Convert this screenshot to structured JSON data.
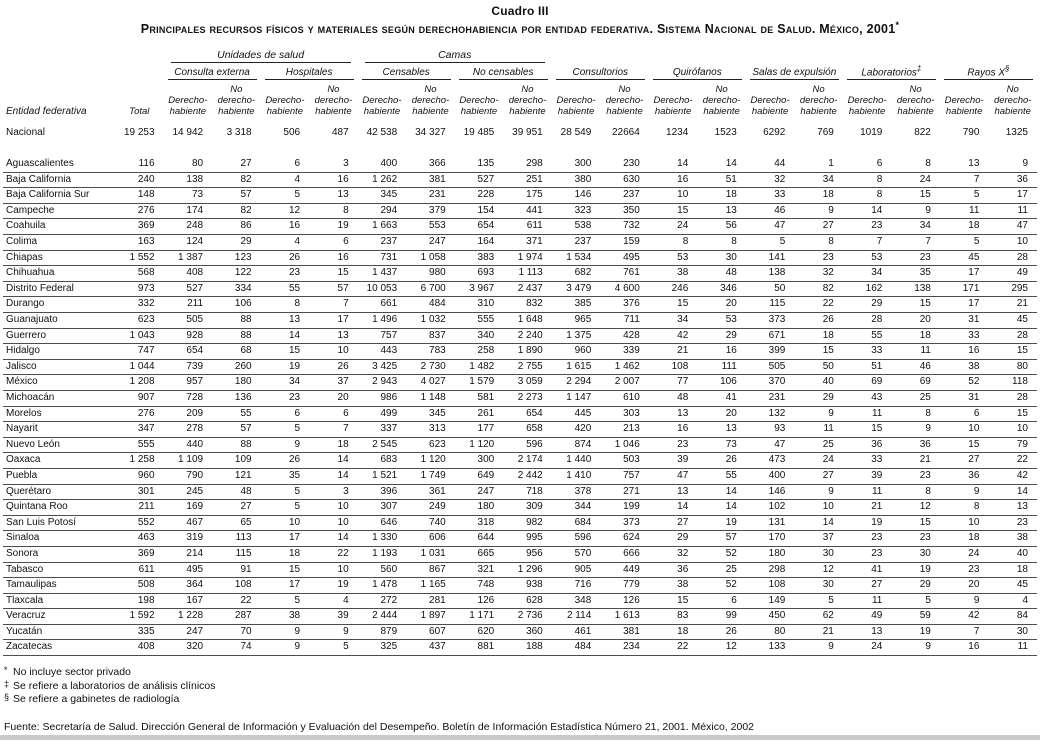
{
  "title": "Cuadro III",
  "subtitle": "Principales recursos físicos y materiales según derechohabiencia por entidad federativa. Sistema Nacional de Salud. México, 2001",
  "subtitle_sup": "*",
  "table": {
    "row_label_header": "Entidad federativa",
    "total_header": "Total",
    "groups": {
      "unidades": "Unidades de salud",
      "camas": "Camas",
      "consulta_externa": "Consulta externa",
      "hospitales": "Hospitales",
      "censables": "Censables",
      "no_censables": "No censables",
      "consultorios": "Consultorios",
      "quirofanos": "Quirófanos",
      "salas": "Salas de expulsión",
      "laboratorios": "Laboratorios",
      "laboratorios_sup": "‡",
      "rayosx": "Rayos X",
      "rayosx_sup": "§"
    },
    "sub": {
      "dh_lines": [
        "Derecho-",
        "habiente"
      ],
      "ndh_lines": [
        "No",
        "derecho-",
        "habiente"
      ]
    },
    "rows": [
      {
        "label": "Nacional",
        "national": true,
        "values": [
          "19 253",
          "14 942",
          "3 318",
          "506",
          "487",
          "42 538",
          "34 327",
          "19 485",
          "39 951",
          "28 549",
          "22664",
          "1234",
          "1523",
          "6292",
          "769",
          "1019",
          "822",
          "790",
          "1325"
        ]
      },
      {
        "label": "Aguascalientes",
        "values": [
          "116",
          "80",
          "27",
          "6",
          "3",
          "400",
          "366",
          "135",
          "298",
          "300",
          "230",
          "14",
          "14",
          "44",
          "1",
          "6",
          "8",
          "13",
          "9"
        ]
      },
      {
        "label": "Baja California",
        "values": [
          "240",
          "138",
          "82",
          "4",
          "16",
          "1 262",
          "381",
          "527",
          "251",
          "380",
          "630",
          "16",
          "51",
          "32",
          "34",
          "8",
          "24",
          "7",
          "36"
        ]
      },
      {
        "label": "Baja California Sur",
        "values": [
          "148",
          "73",
          "57",
          "5",
          "13",
          "345",
          "231",
          "228",
          "175",
          "146",
          "237",
          "10",
          "18",
          "33",
          "18",
          "8",
          "15",
          "5",
          "17"
        ]
      },
      {
        "label": "Campeche",
        "values": [
          "276",
          "174",
          "82",
          "12",
          "8",
          "294",
          "379",
          "154",
          "441",
          "323",
          "350",
          "15",
          "13",
          "46",
          "9",
          "14",
          "9",
          "11",
          "11"
        ]
      },
      {
        "label": "Coahuila",
        "values": [
          "369",
          "248",
          "86",
          "16",
          "19",
          "1 663",
          "553",
          "654",
          "611",
          "538",
          "732",
          "24",
          "56",
          "47",
          "27",
          "23",
          "34",
          "18",
          "47"
        ]
      },
      {
        "label": "Colima",
        "values": [
          "163",
          "124",
          "29",
          "4",
          "6",
          "237",
          "247",
          "164",
          "371",
          "237",
          "159",
          "8",
          "8",
          "5",
          "8",
          "7",
          "7",
          "5",
          "10"
        ]
      },
      {
        "label": "Chiapas",
        "values": [
          "1 552",
          "1 387",
          "123",
          "26",
          "16",
          "731",
          "1 058",
          "383",
          "1 974",
          "1 534",
          "495",
          "53",
          "30",
          "141",
          "23",
          "53",
          "23",
          "45",
          "28"
        ]
      },
      {
        "label": "Chihuahua",
        "values": [
          "568",
          "408",
          "122",
          "23",
          "15",
          "1 437",
          "980",
          "693",
          "1 113",
          "682",
          "761",
          "38",
          "48",
          "138",
          "32",
          "34",
          "35",
          "17",
          "49"
        ]
      },
      {
        "label": "Distrito Federal",
        "values": [
          "973",
          "527",
          "334",
          "55",
          "57",
          "10 053",
          "6 700",
          "3 967",
          "2 437",
          "3 479",
          "4 600",
          "246",
          "346",
          "50",
          "82",
          "162",
          "138",
          "171",
          "295"
        ]
      },
      {
        "label": "Durango",
        "values": [
          "332",
          "211",
          "106",
          "8",
          "7",
          "661",
          "484",
          "310",
          "832",
          "385",
          "376",
          "15",
          "20",
          "115",
          "22",
          "29",
          "15",
          "17",
          "21"
        ]
      },
      {
        "label": "Guanajuato",
        "values": [
          "623",
          "505",
          "88",
          "13",
          "17",
          "1 496",
          "1 032",
          "555",
          "1 648",
          "965",
          "711",
          "34",
          "53",
          "373",
          "26",
          "28",
          "20",
          "31",
          "45"
        ]
      },
      {
        "label": "Guerrero",
        "values": [
          "1 043",
          "928",
          "88",
          "14",
          "13",
          "757",
          "837",
          "340",
          "2 240",
          "1 375",
          "428",
          "42",
          "29",
          "671",
          "18",
          "55",
          "18",
          "33",
          "28"
        ]
      },
      {
        "label": "Hidalgo",
        "values": [
          "747",
          "654",
          "68",
          "15",
          "10",
          "443",
          "783",
          "258",
          "1 890",
          "960",
          "339",
          "21",
          "16",
          "399",
          "15",
          "33",
          "11",
          "16",
          "15"
        ]
      },
      {
        "label": "Jalisco",
        "values": [
          "1 044",
          "739",
          "260",
          "19",
          "26",
          "3 425",
          "2 730",
          "1 482",
          "2 755",
          "1 615",
          "1 462",
          "108",
          "111",
          "505",
          "50",
          "51",
          "46",
          "38",
          "80"
        ]
      },
      {
        "label": "México",
        "values": [
          "1 208",
          "957",
          "180",
          "34",
          "37",
          "2 943",
          "4 027",
          "1 579",
          "3 059",
          "2 294",
          "2 007",
          "77",
          "106",
          "370",
          "40",
          "69",
          "69",
          "52",
          "118"
        ]
      },
      {
        "label": "Michoacán",
        "values": [
          "907",
          "728",
          "136",
          "23",
          "20",
          "986",
          "1 148",
          "581",
          "2 273",
          "1 147",
          "610",
          "48",
          "41",
          "231",
          "29",
          "43",
          "25",
          "31",
          "28"
        ]
      },
      {
        "label": "Morelos",
        "values": [
          "276",
          "209",
          "55",
          "6",
          "6",
          "499",
          "345",
          "261",
          "654",
          "445",
          "303",
          "13",
          "20",
          "132",
          "9",
          "11",
          "8",
          "6",
          "15"
        ]
      },
      {
        "label": "Nayarit",
        "values": [
          "347",
          "278",
          "57",
          "5",
          "7",
          "337",
          "313",
          "177",
          "658",
          "420",
          "213",
          "16",
          "13",
          "93",
          "11",
          "15",
          "9",
          "10",
          "10"
        ]
      },
      {
        "label": "Nuevo León",
        "values": [
          "555",
          "440",
          "88",
          "9",
          "18",
          "2 545",
          "623",
          "1 120",
          "596",
          "874",
          "1 046",
          "23",
          "73",
          "47",
          "25",
          "36",
          "36",
          "15",
          "79"
        ]
      },
      {
        "label": "Oaxaca",
        "values": [
          "1 258",
          "1 109",
          "109",
          "26",
          "14",
          "683",
          "1 120",
          "300",
          "2 174",
          "1 440",
          "503",
          "39",
          "26",
          "473",
          "24",
          "33",
          "21",
          "27",
          "22"
        ]
      },
      {
        "label": "Puebla",
        "values": [
          "960",
          "790",
          "121",
          "35",
          "14",
          "1 521",
          "1 749",
          "649",
          "2 442",
          "1 410",
          "757",
          "47",
          "55",
          "400",
          "27",
          "39",
          "23",
          "36",
          "42"
        ]
      },
      {
        "label": "Querétaro",
        "values": [
          "301",
          "245",
          "48",
          "5",
          "3",
          "396",
          "361",
          "247",
          "718",
          "378",
          "271",
          "13",
          "14",
          "146",
          "9",
          "11",
          "8",
          "9",
          "14"
        ]
      },
      {
        "label": "Quintana Roo",
        "values": [
          "211",
          "169",
          "27",
          "5",
          "10",
          "307",
          "249",
          "180",
          "309",
          "344",
          "199",
          "14",
          "14",
          "102",
          "10",
          "21",
          "12",
          "8",
          "13"
        ]
      },
      {
        "label": "San Luis Potosí",
        "values": [
          "552",
          "467",
          "65",
          "10",
          "10",
          "646",
          "740",
          "318",
          "982",
          "684",
          "373",
          "27",
          "19",
          "131",
          "14",
          "19",
          "15",
          "10",
          "23"
        ]
      },
      {
        "label": "Sinaloa",
        "values": [
          "463",
          "319",
          "113",
          "17",
          "14",
          "1 330",
          "606",
          "644",
          "995",
          "596",
          "624",
          "29",
          "57",
          "170",
          "37",
          "23",
          "23",
          "18",
          "38"
        ]
      },
      {
        "label": "Sonora",
        "values": [
          "369",
          "214",
          "115",
          "18",
          "22",
          "1 193",
          "1 031",
          "665",
          "956",
          "570",
          "666",
          "32",
          "52",
          "180",
          "30",
          "23",
          "30",
          "24",
          "40"
        ]
      },
      {
        "label": "Tabasco",
        "values": [
          "611",
          "495",
          "91",
          "15",
          "10",
          "560",
          "867",
          "321",
          "1 296",
          "905",
          "449",
          "36",
          "25",
          "298",
          "12",
          "41",
          "19",
          "23",
          "18"
        ]
      },
      {
        "label": "Tamaulipas",
        "values": [
          "508",
          "364",
          "108",
          "17",
          "19",
          "1 478",
          "1 165",
          "748",
          "938",
          "716",
          "779",
          "38",
          "52",
          "108",
          "30",
          "27",
          "29",
          "20",
          "45"
        ]
      },
      {
        "label": "Tlaxcala",
        "values": [
          "198",
          "167",
          "22",
          "5",
          "4",
          "272",
          "281",
          "126",
          "628",
          "348",
          "126",
          "15",
          "6",
          "149",
          "5",
          "11",
          "5",
          "9",
          "4"
        ]
      },
      {
        "label": "Veracruz",
        "values": [
          "1 592",
          "1 228",
          "287",
          "38",
          "39",
          "2 444",
          "1 897",
          "1 171",
          "2 736",
          "2 114",
          "1 613",
          "83",
          "99",
          "450",
          "62",
          "49",
          "59",
          "42",
          "84"
        ]
      },
      {
        "label": "Yucatán",
        "values": [
          "335",
          "247",
          "70",
          "9",
          "9",
          "879",
          "607",
          "620",
          "360",
          "461",
          "381",
          "18",
          "26",
          "80",
          "21",
          "13",
          "19",
          "7",
          "30"
        ]
      },
      {
        "label": "Zacatecas",
        "values": [
          "408",
          "320",
          "74",
          "9",
          "5",
          "325",
          "437",
          "881",
          "188",
          "484",
          "234",
          "22",
          "12",
          "133",
          "9",
          "24",
          "9",
          "16",
          "11"
        ]
      }
    ]
  },
  "notes": [
    {
      "sym": "*",
      "text": "No incluye sector privado"
    },
    {
      "sym": "‡",
      "text": "Se refiere a laboratorios de análisis clínicos"
    },
    {
      "sym": "§",
      "text": "Se refiere a gabinetes de radiología"
    }
  ],
  "source": "Fuente: Secretaría de Salud. Dirección General de Información y Evaluación del Desempeño. Boletín de Información Estadística Número 21, 2001. México, 2002"
}
